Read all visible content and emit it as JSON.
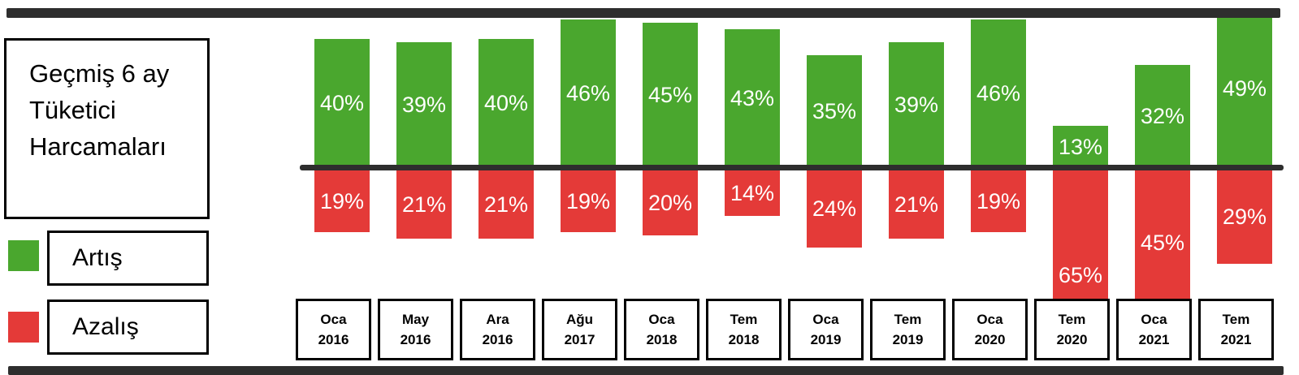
{
  "title": {
    "lines": [
      "Geçmiş 6 ay",
      "Tüketici",
      "Harcamaları"
    ]
  },
  "legend": {
    "items": [
      {
        "label": "Artış",
        "color": "#4aa72e"
      },
      {
        "label": "Azalış",
        "color": "#e43a38"
      }
    ]
  },
  "chart_data": {
    "type": "bar",
    "subtype": "diverging-vertical",
    "title": "Geçmiş 6 ay Tüketici Harcamaları",
    "value_suffix": "%",
    "label_color": "#ffffff",
    "baseline_value": 0,
    "grid": false,
    "legend_position": "left",
    "categories": [
      {
        "month": "Oca",
        "year": "2016"
      },
      {
        "month": "May",
        "year": "2016"
      },
      {
        "month": "Ara",
        "year": "2016"
      },
      {
        "month": "Ağu",
        "year": "2017"
      },
      {
        "month": "Oca",
        "year": "2018"
      },
      {
        "month": "Tem",
        "year": "2018"
      },
      {
        "month": "Oca",
        "year": "2019"
      },
      {
        "month": "Tem",
        "year": "2019"
      },
      {
        "month": "Oca",
        "year": "2020"
      },
      {
        "month": "Tem",
        "year": "2020"
      },
      {
        "month": "Oca",
        "year": "2021"
      },
      {
        "month": "Tem",
        "year": "2021"
      }
    ],
    "series": [
      {
        "name": "Artış",
        "direction": "up",
        "color": "#4aa72e",
        "values": [
          40,
          39,
          40,
          46,
          45,
          43,
          35,
          39,
          46,
          13,
          32,
          49
        ]
      },
      {
        "name": "Azalış",
        "direction": "down",
        "color": "#e43a38",
        "values": [
          19,
          21,
          21,
          19,
          20,
          14,
          24,
          21,
          19,
          65,
          45,
          29
        ]
      }
    ]
  },
  "colors": {
    "rule_dark": "#2e2e2e",
    "background": "#ffffff",
    "box_border": "#000000"
  }
}
